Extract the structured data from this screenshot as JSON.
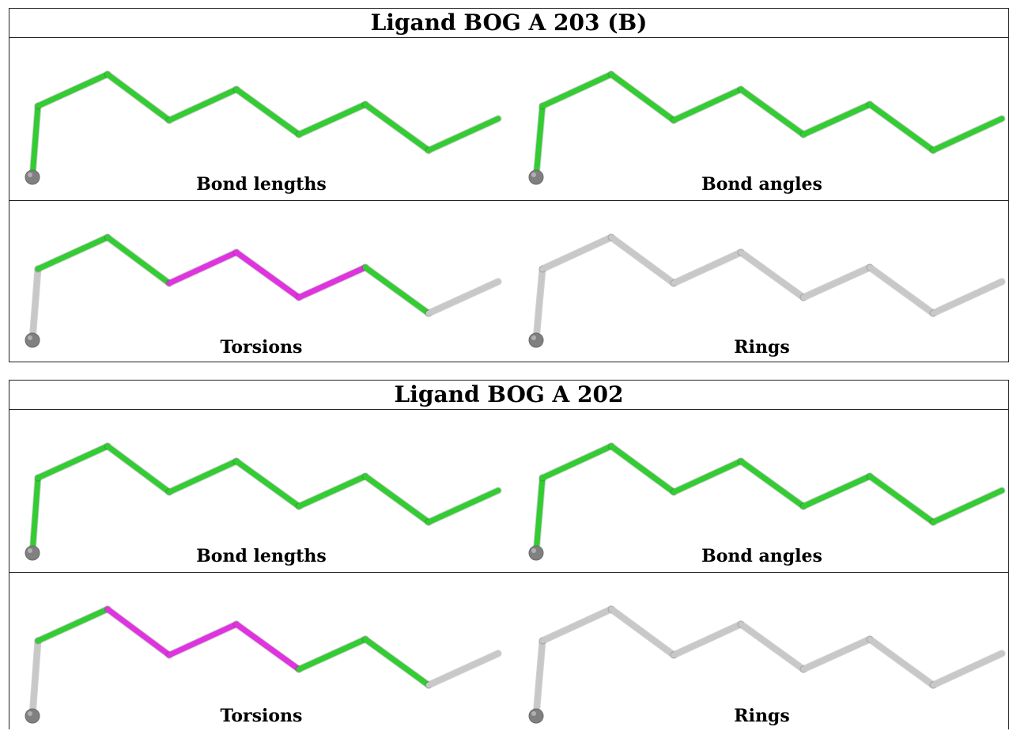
{
  "panels": [
    {
      "title": "Ligand BOG A 203 (B)",
      "cells": [
        {
          "caption": "Bond lengths",
          "bond_colors": [
            "green",
            "green",
            "green",
            "green",
            "green",
            "green",
            "green",
            "green"
          ]
        },
        {
          "caption": "Bond angles",
          "bond_colors": [
            "green",
            "green",
            "green",
            "green",
            "green",
            "green",
            "green",
            "green"
          ]
        },
        {
          "caption": "Torsions",
          "bond_colors": [
            "grey",
            "green",
            "green",
            "magenta",
            "magenta",
            "magenta",
            "green",
            "grey"
          ]
        },
        {
          "caption": "Rings",
          "bond_colors": [
            "grey",
            "grey",
            "grey",
            "grey",
            "grey",
            "grey",
            "grey",
            "grey"
          ]
        }
      ]
    },
    {
      "title": "Ligand BOG A 202",
      "cells": [
        {
          "caption": "Bond lengths",
          "bond_colors": [
            "green",
            "green",
            "green",
            "green",
            "green",
            "green",
            "green",
            "green"
          ]
        },
        {
          "caption": "Bond angles",
          "bond_colors": [
            "green",
            "green",
            "green",
            "green",
            "green",
            "green",
            "green",
            "green"
          ]
        },
        {
          "caption": "Torsions",
          "bond_colors": [
            "grey",
            "green",
            "magenta",
            "magenta",
            "magenta",
            "green",
            "green",
            "grey"
          ]
        },
        {
          "caption": "Rings",
          "bond_colors": [
            "grey",
            "grey",
            "grey",
            "grey",
            "grey",
            "grey",
            "grey",
            "grey"
          ]
        }
      ]
    }
  ],
  "colors": {
    "green": "#33cc33",
    "magenta": "#e033e0",
    "grey": "#c8c8c8",
    "atom": "#808080"
  }
}
